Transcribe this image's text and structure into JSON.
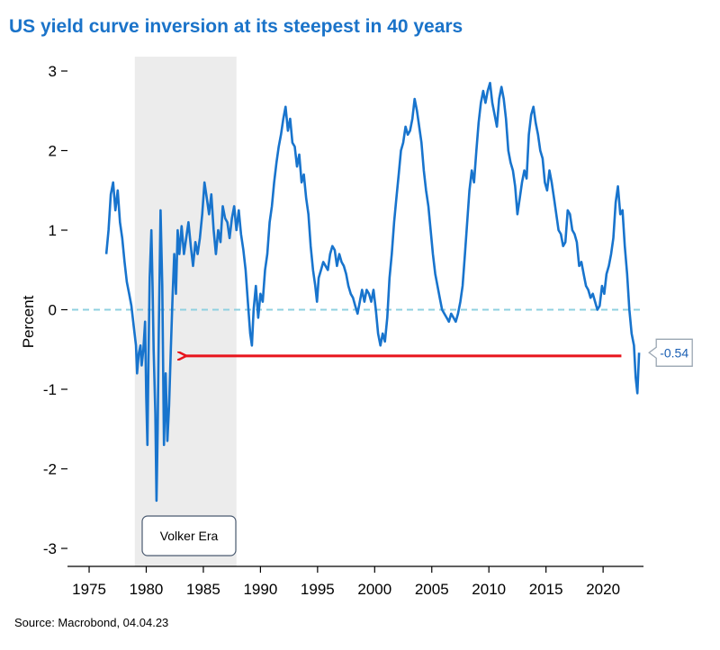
{
  "chart_data": {
    "type": "line",
    "title": "US yield curve inversion at its steepest in 40 years",
    "ylabel": "Percent",
    "xlabel": "",
    "source": "Source: Macrobond, 04.04.23",
    "xlim": [
      1973.5,
      2023.3
    ],
    "ylim": [
      -3,
      3
    ],
    "x_ticks": [
      "1975",
      "1980",
      "1985",
      "1990",
      "1995",
      "2000",
      "2005",
      "2010",
      "2015",
      "2020"
    ],
    "y_ticks": [
      {
        "value": 3,
        "label": "3"
      },
      {
        "value": 2,
        "label": "2"
      },
      {
        "value": 1,
        "label": "1"
      },
      {
        "value": 0,
        "label": "0"
      },
      {
        "value": -1,
        "label": "-1"
      },
      {
        "value": -2,
        "label": "-2"
      },
      {
        "value": -3,
        "label": "-3"
      }
    ],
    "zero_line": true,
    "shaded_region": {
      "x_start": 1979.0,
      "x_end": 1987.9,
      "label": "Volker Era"
    },
    "arrow": {
      "from": [
        2021.6,
        -0.58
      ],
      "to": [
        1983.2,
        -0.58
      ],
      "color": "#e8141c"
    },
    "callout": {
      "x": 2023.0,
      "y": -0.54,
      "label": "-0.54"
    },
    "series": [
      {
        "color": "#1874cd",
        "points": [
          [
            1976.5,
            0.7
          ],
          [
            1976.7,
            1.0
          ],
          [
            1976.9,
            1.45
          ],
          [
            1977.1,
            1.6
          ],
          [
            1977.3,
            1.25
          ],
          [
            1977.5,
            1.5
          ],
          [
            1977.7,
            1.1
          ],
          [
            1977.9,
            0.9
          ],
          [
            1978.1,
            0.6
          ],
          [
            1978.3,
            0.35
          ],
          [
            1978.5,
            0.2
          ],
          [
            1978.7,
            0.05
          ],
          [
            1978.9,
            -0.2
          ],
          [
            1979.1,
            -0.45
          ],
          [
            1979.2,
            -0.8
          ],
          [
            1979.35,
            -0.55
          ],
          [
            1979.5,
            -0.45
          ],
          [
            1979.6,
            -0.7
          ],
          [
            1979.75,
            -0.5
          ],
          [
            1979.9,
            -0.15
          ],
          [
            1980.0,
            -1.1
          ],
          [
            1980.1,
            -1.7
          ],
          [
            1980.2,
            -0.6
          ],
          [
            1980.3,
            0.4
          ],
          [
            1980.45,
            1.0
          ],
          [
            1980.55,
            0.3
          ],
          [
            1980.65,
            -0.5
          ],
          [
            1980.8,
            -1.3
          ],
          [
            1980.9,
            -2.4
          ],
          [
            1981.0,
            -1.5
          ],
          [
            1981.1,
            -0.3
          ],
          [
            1981.25,
            1.25
          ],
          [
            1981.4,
            0.3
          ],
          [
            1981.55,
            -1.7
          ],
          [
            1981.7,
            -0.8
          ],
          [
            1981.85,
            -1.65
          ],
          [
            1982.0,
            -1.2
          ],
          [
            1982.15,
            -0.5
          ],
          [
            1982.3,
            0.15
          ],
          [
            1982.45,
            0.7
          ],
          [
            1982.6,
            0.2
          ],
          [
            1982.75,
            1.0
          ],
          [
            1982.9,
            0.7
          ],
          [
            1983.1,
            1.05
          ],
          [
            1983.3,
            0.7
          ],
          [
            1983.5,
            0.9
          ],
          [
            1983.7,
            1.1
          ],
          [
            1983.9,
            0.8
          ],
          [
            1984.1,
            0.55
          ],
          [
            1984.3,
            0.85
          ],
          [
            1984.5,
            0.7
          ],
          [
            1984.7,
            0.9
          ],
          [
            1984.9,
            1.2
          ],
          [
            1985.1,
            1.6
          ],
          [
            1985.3,
            1.4
          ],
          [
            1985.5,
            1.2
          ],
          [
            1985.7,
            1.45
          ],
          [
            1985.9,
            1.0
          ],
          [
            1986.1,
            0.7
          ],
          [
            1986.3,
            1.0
          ],
          [
            1986.5,
            0.85
          ],
          [
            1986.7,
            1.3
          ],
          [
            1986.9,
            1.15
          ],
          [
            1987.1,
            1.1
          ],
          [
            1987.3,
            0.9
          ],
          [
            1987.5,
            1.15
          ],
          [
            1987.7,
            1.3
          ],
          [
            1987.9,
            1.0
          ],
          [
            1988.1,
            1.25
          ],
          [
            1988.3,
            0.95
          ],
          [
            1988.5,
            0.75
          ],
          [
            1988.7,
            0.5
          ],
          [
            1988.9,
            0.1
          ],
          [
            1989.1,
            -0.3
          ],
          [
            1989.25,
            -0.45
          ],
          [
            1989.4,
            0.0
          ],
          [
            1989.6,
            0.3
          ],
          [
            1989.8,
            -0.1
          ],
          [
            1990.0,
            0.2
          ],
          [
            1990.2,
            0.1
          ],
          [
            1990.4,
            0.5
          ],
          [
            1990.6,
            0.7
          ],
          [
            1990.8,
            1.1
          ],
          [
            1991.0,
            1.3
          ],
          [
            1991.2,
            1.6
          ],
          [
            1991.4,
            1.85
          ],
          [
            1991.6,
            2.05
          ],
          [
            1991.8,
            2.2
          ],
          [
            1992.0,
            2.4
          ],
          [
            1992.2,
            2.55
          ],
          [
            1992.4,
            2.25
          ],
          [
            1992.6,
            2.4
          ],
          [
            1992.8,
            2.1
          ],
          [
            1993.0,
            2.05
          ],
          [
            1993.2,
            1.8
          ],
          [
            1993.4,
            1.95
          ],
          [
            1993.6,
            1.6
          ],
          [
            1993.8,
            1.7
          ],
          [
            1994.0,
            1.4
          ],
          [
            1994.2,
            1.2
          ],
          [
            1994.4,
            0.8
          ],
          [
            1994.6,
            0.5
          ],
          [
            1994.8,
            0.3
          ],
          [
            1994.95,
            0.1
          ],
          [
            1995.1,
            0.4
          ],
          [
            1995.3,
            0.5
          ],
          [
            1995.5,
            0.6
          ],
          [
            1995.7,
            0.55
          ],
          [
            1995.9,
            0.5
          ],
          [
            1996.1,
            0.7
          ],
          [
            1996.3,
            0.8
          ],
          [
            1996.5,
            0.75
          ],
          [
            1996.7,
            0.55
          ],
          [
            1996.9,
            0.7
          ],
          [
            1997.1,
            0.6
          ],
          [
            1997.3,
            0.55
          ],
          [
            1997.5,
            0.45
          ],
          [
            1997.7,
            0.3
          ],
          [
            1997.9,
            0.2
          ],
          [
            1998.1,
            0.15
          ],
          [
            1998.3,
            0.05
          ],
          [
            1998.5,
            -0.05
          ],
          [
            1998.7,
            0.1
          ],
          [
            1998.9,
            0.25
          ],
          [
            1999.1,
            0.1
          ],
          [
            1999.3,
            0.25
          ],
          [
            1999.5,
            0.2
          ],
          [
            1999.7,
            0.1
          ],
          [
            1999.9,
            0.25
          ],
          [
            2000.1,
            0.0
          ],
          [
            2000.3,
            -0.3
          ],
          [
            2000.5,
            -0.45
          ],
          [
            2000.7,
            -0.3
          ],
          [
            2000.9,
            -0.4
          ],
          [
            2001.1,
            -0.1
          ],
          [
            2001.3,
            0.4
          ],
          [
            2001.5,
            0.7
          ],
          [
            2001.7,
            1.1
          ],
          [
            2001.9,
            1.4
          ],
          [
            2002.1,
            1.7
          ],
          [
            2002.3,
            2.0
          ],
          [
            2002.5,
            2.1
          ],
          [
            2002.7,
            2.3
          ],
          [
            2002.9,
            2.2
          ],
          [
            2003.1,
            2.25
          ],
          [
            2003.3,
            2.4
          ],
          [
            2003.5,
            2.65
          ],
          [
            2003.7,
            2.5
          ],
          [
            2003.9,
            2.3
          ],
          [
            2004.1,
            2.1
          ],
          [
            2004.3,
            1.75
          ],
          [
            2004.5,
            1.5
          ],
          [
            2004.7,
            1.3
          ],
          [
            2004.9,
            1.0
          ],
          [
            2005.1,
            0.7
          ],
          [
            2005.3,
            0.45
          ],
          [
            2005.5,
            0.3
          ],
          [
            2005.7,
            0.15
          ],
          [
            2005.9,
            0.0
          ],
          [
            2006.1,
            -0.05
          ],
          [
            2006.3,
            -0.1
          ],
          [
            2006.5,
            -0.15
          ],
          [
            2006.7,
            -0.05
          ],
          [
            2006.9,
            -0.1
          ],
          [
            2007.1,
            -0.15
          ],
          [
            2007.3,
            -0.05
          ],
          [
            2007.5,
            0.1
          ],
          [
            2007.7,
            0.3
          ],
          [
            2007.9,
            0.7
          ],
          [
            2008.1,
            1.1
          ],
          [
            2008.3,
            1.5
          ],
          [
            2008.5,
            1.75
          ],
          [
            2008.7,
            1.6
          ],
          [
            2008.9,
            2.0
          ],
          [
            2009.1,
            2.35
          ],
          [
            2009.3,
            2.6
          ],
          [
            2009.5,
            2.75
          ],
          [
            2009.7,
            2.6
          ],
          [
            2009.9,
            2.75
          ],
          [
            2010.1,
            2.85
          ],
          [
            2010.3,
            2.6
          ],
          [
            2010.5,
            2.45
          ],
          [
            2010.7,
            2.3
          ],
          [
            2010.9,
            2.65
          ],
          [
            2011.1,
            2.8
          ],
          [
            2011.3,
            2.65
          ],
          [
            2011.5,
            2.4
          ],
          [
            2011.7,
            2.0
          ],
          [
            2011.9,
            1.85
          ],
          [
            2012.1,
            1.75
          ],
          [
            2012.3,
            1.55
          ],
          [
            2012.5,
            1.2
          ],
          [
            2012.7,
            1.4
          ],
          [
            2012.9,
            1.6
          ],
          [
            2013.1,
            1.75
          ],
          [
            2013.3,
            1.65
          ],
          [
            2013.5,
            2.2
          ],
          [
            2013.7,
            2.45
          ],
          [
            2013.9,
            2.55
          ],
          [
            2014.1,
            2.35
          ],
          [
            2014.3,
            2.2
          ],
          [
            2014.5,
            2.0
          ],
          [
            2014.7,
            1.9
          ],
          [
            2014.9,
            1.6
          ],
          [
            2015.1,
            1.5
          ],
          [
            2015.3,
            1.75
          ],
          [
            2015.5,
            1.6
          ],
          [
            2015.7,
            1.4
          ],
          [
            2015.9,
            1.2
          ],
          [
            2016.1,
            1.0
          ],
          [
            2016.3,
            0.95
          ],
          [
            2016.5,
            0.8
          ],
          [
            2016.7,
            0.85
          ],
          [
            2016.9,
            1.25
          ],
          [
            2017.1,
            1.2
          ],
          [
            2017.3,
            1.0
          ],
          [
            2017.5,
            0.95
          ],
          [
            2017.7,
            0.85
          ],
          [
            2017.9,
            0.55
          ],
          [
            2018.1,
            0.6
          ],
          [
            2018.3,
            0.45
          ],
          [
            2018.5,
            0.3
          ],
          [
            2018.7,
            0.25
          ],
          [
            2018.9,
            0.15
          ],
          [
            2019.1,
            0.2
          ],
          [
            2019.3,
            0.1
          ],
          [
            2019.5,
            0.0
          ],
          [
            2019.7,
            0.05
          ],
          [
            2019.9,
            0.3
          ],
          [
            2020.1,
            0.2
          ],
          [
            2020.3,
            0.45
          ],
          [
            2020.5,
            0.55
          ],
          [
            2020.7,
            0.7
          ],
          [
            2020.9,
            0.9
          ],
          [
            2021.1,
            1.35
          ],
          [
            2021.3,
            1.55
          ],
          [
            2021.5,
            1.2
          ],
          [
            2021.7,
            1.25
          ],
          [
            2021.9,
            0.8
          ],
          [
            2022.1,
            0.45
          ],
          [
            2022.3,
            0.0
          ],
          [
            2022.5,
            -0.3
          ],
          [
            2022.7,
            -0.45
          ],
          [
            2022.85,
            -0.85
          ],
          [
            2023.0,
            -1.05
          ],
          [
            2023.15,
            -0.54
          ]
        ]
      }
    ]
  }
}
